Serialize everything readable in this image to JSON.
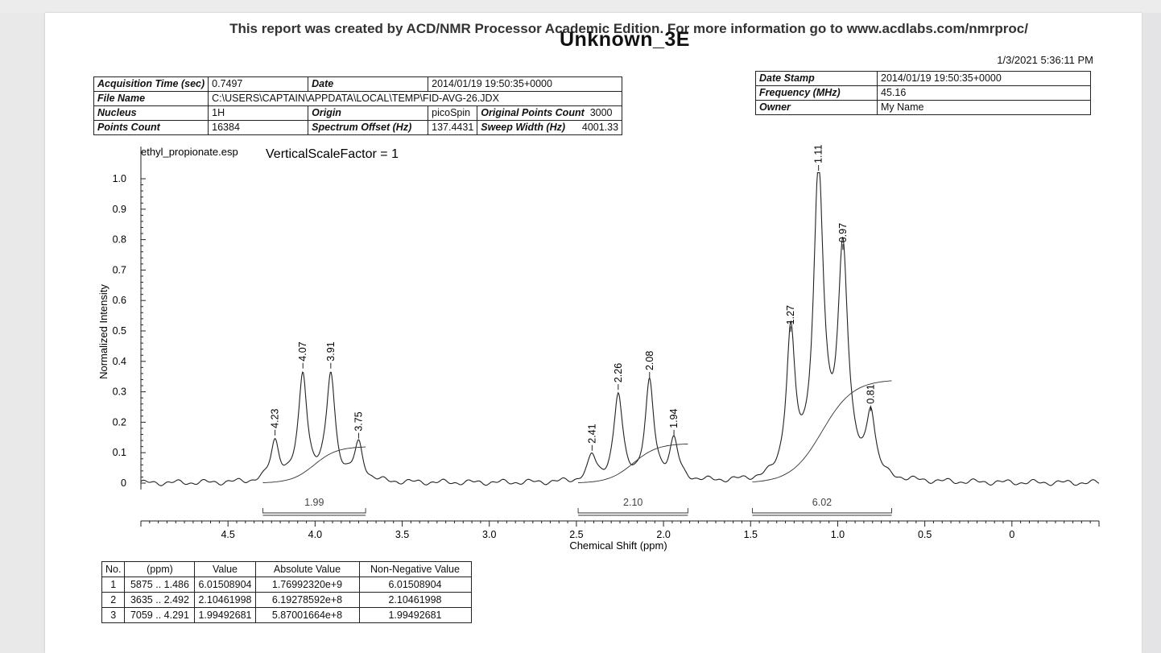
{
  "report_note": "This report was created by ACD/NMR Processor Academic Edition. For more information go to www.acdlabs.com/nmrproc/",
  "title": "Unknown_3E",
  "timestamp": "1/3/2021 5:36:11 PM",
  "info": {
    "acq_label": "Acquisition Time (sec)",
    "acq_value": "0.7497",
    "date_label": "Date",
    "date_value": "2014/01/19 19:50:35+0000",
    "file_label": "File Name",
    "file_value": "C:\\USERS\\CAPTAIN\\APPDATA\\LOCAL\\TEMP\\FID-AVG-26.JDX",
    "nucleus_label": "Nucleus",
    "nucleus_value": "1H",
    "origin_label": "Origin",
    "origin_value": "picoSpin",
    "opc_label": "Original Points Count",
    "opc_value": "3000",
    "pc_label": "Points Count",
    "pc_value": "16384",
    "offset_label": "Spectrum Offset (Hz)",
    "offset_value": "137.4431",
    "sweep_label": "Sweep Width (Hz)",
    "sweep_value": "4001.33",
    "stamp_label": "Date Stamp",
    "stamp_value": "2014/01/19 19:50:35+0000",
    "freq_label": "Frequency (MHz)",
    "freq_value": "45.16",
    "owner_label": "Owner",
    "owner_value": "My Name"
  },
  "chart_data": {
    "type": "line",
    "file_label": "ethyl_propionate.esp",
    "scale_label": "VerticalScaleFactor = 1",
    "xlabel": "Chemical Shift (ppm)",
    "ylabel": "Normalized Intensity",
    "xlim": [
      5.0,
      -0.5
    ],
    "ylim": [
      0,
      1.05
    ],
    "x_ticks": [
      "4.5",
      "4.0",
      "3.5",
      "3.0",
      "2.5",
      "2.0",
      "1.5",
      "1.0",
      "0.5",
      "0"
    ],
    "y_ticks": [
      "0",
      "0.1",
      "0.2",
      "0.3",
      "0.4",
      "0.5",
      "0.6",
      "0.7",
      "0.8",
      "0.9",
      "1.0"
    ],
    "peaks": [
      {
        "ppm": 4.23,
        "label": "4.23",
        "height": 0.13
      },
      {
        "ppm": 4.07,
        "label": "4.07",
        "height": 0.35
      },
      {
        "ppm": 3.91,
        "label": "3.91",
        "height": 0.35
      },
      {
        "ppm": 3.75,
        "label": "3.75",
        "height": 0.12
      },
      {
        "ppm": 2.41,
        "label": "2.41",
        "height": 0.08
      },
      {
        "ppm": 2.26,
        "label": "2.26",
        "height": 0.28
      },
      {
        "ppm": 2.08,
        "label": "2.08",
        "height": 0.32
      },
      {
        "ppm": 1.94,
        "label": "1.94",
        "height": 0.13
      },
      {
        "ppm": 1.27,
        "label": "1.27",
        "height": 0.47
      },
      {
        "ppm": 1.11,
        "label": "1.11",
        "height": 1.0
      },
      {
        "ppm": 0.97,
        "label": "0.97",
        "height": 0.74
      },
      {
        "ppm": 0.81,
        "label": "0.81",
        "height": 0.21
      }
    ],
    "integrals": [
      {
        "from": 4.3,
        "to": 3.71,
        "label": "1.99",
        "curve_end": 0.12
      },
      {
        "from": 2.49,
        "to": 1.86,
        "label": "2.10",
        "curve_end": 0.13
      },
      {
        "from": 1.49,
        "to": 0.69,
        "label": "6.02",
        "curve_end": 0.34
      }
    ]
  },
  "integration_table": {
    "headers": [
      "No.",
      "(ppm)",
      "Value",
      "Absolute Value",
      "Non-Negative Value"
    ],
    "rows": [
      [
        "1",
        "5875 .. 1.486",
        "6.01508904",
        "1.76992320e+9",
        "6.01508904"
      ],
      [
        "2",
        "3635 .. 2.492",
        "2.10461998",
        "6.19278592e+8",
        "2.10461998"
      ],
      [
        "3",
        "7059 .. 4.291",
        "1.99492681",
        "5.87001664e+8",
        "1.99492681"
      ]
    ]
  }
}
